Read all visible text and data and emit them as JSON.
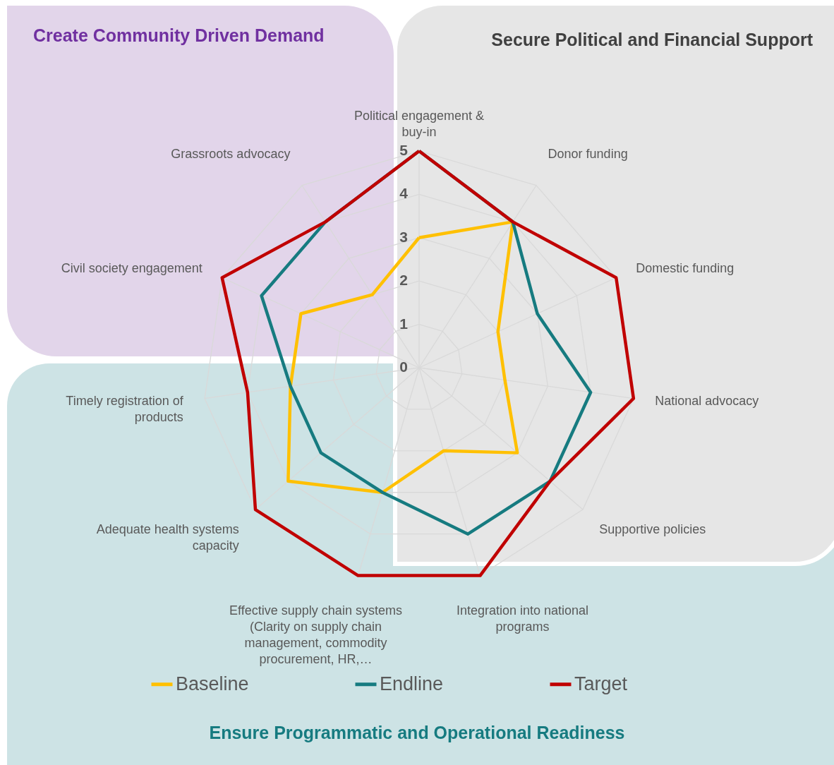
{
  "chart_data": {
    "type": "radar",
    "categories": [
      "Political engagement & buy-in",
      "Donor funding",
      "Domestic funding",
      "National advocacy",
      "Supportive policies",
      "Integration into national programs",
      "Effective supply chain systems (Clarity on supply chain management, commodity procurement, HR,…",
      "Adequate health systems capacity",
      "Timely registration of products",
      "Civil society engagement",
      "Grassroots advocacy"
    ],
    "series": [
      {
        "name": "Baseline",
        "color": "#ffc000",
        "values": [
          3,
          4,
          2,
          2,
          3,
          2,
          3,
          4,
          3,
          3,
          2
        ]
      },
      {
        "name": "Endline",
        "color": "#167b80",
        "values": [
          5,
          4,
          3,
          4,
          4,
          4,
          3,
          3,
          3,
          4,
          4
        ]
      },
      {
        "name": "Target",
        "color": "#c00000",
        "values": [
          5,
          4,
          5,
          5,
          4,
          5,
          5,
          5,
          4,
          5,
          4
        ]
      }
    ],
    "ylim": [
      0,
      5
    ],
    "yticks": [
      0,
      1,
      2,
      3,
      4,
      5
    ],
    "grid": true,
    "legend": "bottom",
    "marker": "none",
    "line_style": "solid",
    "annotations": [
      "Create Community Driven Demand",
      "Secure Political and Financial Support",
      "Ensure Programmatic and Operational Readiness"
    ]
  }
}
